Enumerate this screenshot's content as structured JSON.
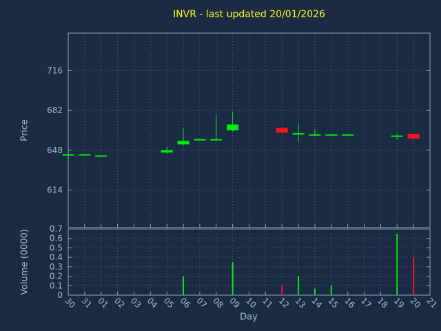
{
  "chart_data": {
    "type": "candlestick",
    "title": "INVR - last updated 20/01/2026",
    "xlabel": "Day",
    "legend": "none",
    "grid": "dotted",
    "categories": [
      "30",
      "31",
      "01",
      "02",
      "03",
      "04",
      "05",
      "06",
      "07",
      "08",
      "09",
      "10",
      "11",
      "12",
      "13",
      "14",
      "15",
      "16",
      "17",
      "18",
      "19",
      "20",
      "21"
    ],
    "price_panel": {
      "ylabel": "Price",
      "ticks": [
        614,
        648,
        682,
        716
      ],
      "ylim": [
        582,
        748
      ]
    },
    "volume_panel": {
      "ylabel": "Volume (0000)",
      "ticks": [
        0,
        0.1,
        0.2,
        0.3,
        0.4,
        0.5,
        0.6,
        0.7
      ],
      "ylim": [
        0,
        0.7
      ]
    },
    "colors": {
      "up": "#00ee00",
      "down": "#ff1414",
      "title": "#ffff00",
      "axis_text": "#a0b8d0",
      "frame": "#8ea6bc",
      "grid": "#54667c",
      "background": "#1b2b45"
    },
    "candles": [
      {
        "day": "30",
        "open": 644,
        "high": 644,
        "low": 643,
        "close": 644,
        "dir": "up",
        "volume": 0
      },
      {
        "day": "31",
        "open": 644,
        "high": 644,
        "low": 644,
        "close": 644,
        "dir": "up",
        "volume": 0
      },
      {
        "day": "01",
        "open": 643,
        "high": 643,
        "low": 643,
        "close": 643,
        "dir": "up",
        "volume": 0
      },
      {
        "day": "05",
        "open": 646,
        "high": 651,
        "low": 645,
        "close": 648,
        "dir": "up",
        "volume": 0
      },
      {
        "day": "06",
        "open": 653,
        "high": 667,
        "low": 652,
        "close": 656,
        "dir": "up",
        "volume": 0.2
      },
      {
        "day": "07",
        "open": 657,
        "high": 657,
        "low": 657,
        "close": 657,
        "dir": "up",
        "volume": 0
      },
      {
        "day": "08",
        "open": 657,
        "high": 678,
        "low": 656,
        "close": 657,
        "dir": "up",
        "volume": 0
      },
      {
        "day": "09",
        "open": 665,
        "high": 681,
        "low": 664,
        "close": 670,
        "dir": "up",
        "volume": 0.35
      },
      {
        "day": "12",
        "open": 667,
        "high": 667,
        "low": 662,
        "close": 663,
        "dir": "down",
        "volume": 0.1
      },
      {
        "day": "13",
        "open": 662,
        "high": 671,
        "low": 655,
        "close": 662,
        "dir": "up",
        "volume": 0.2
      },
      {
        "day": "14",
        "open": 661,
        "high": 666,
        "low": 660,
        "close": 661,
        "dir": "up",
        "volume": 0.07
      },
      {
        "day": "15",
        "open": 661,
        "high": 662,
        "low": 660,
        "close": 661,
        "dir": "up",
        "volume": 0.1
      },
      {
        "day": "16",
        "open": 661,
        "high": 661,
        "low": 661,
        "close": 661,
        "dir": "up",
        "volume": 0
      },
      {
        "day": "19",
        "open": 660,
        "high": 663,
        "low": 657,
        "close": 660,
        "dir": "up",
        "volume": 0.65
      },
      {
        "day": "20",
        "open": 662,
        "high": 662,
        "low": 656,
        "close": 658,
        "dir": "down",
        "volume": 0.4
      }
    ]
  }
}
